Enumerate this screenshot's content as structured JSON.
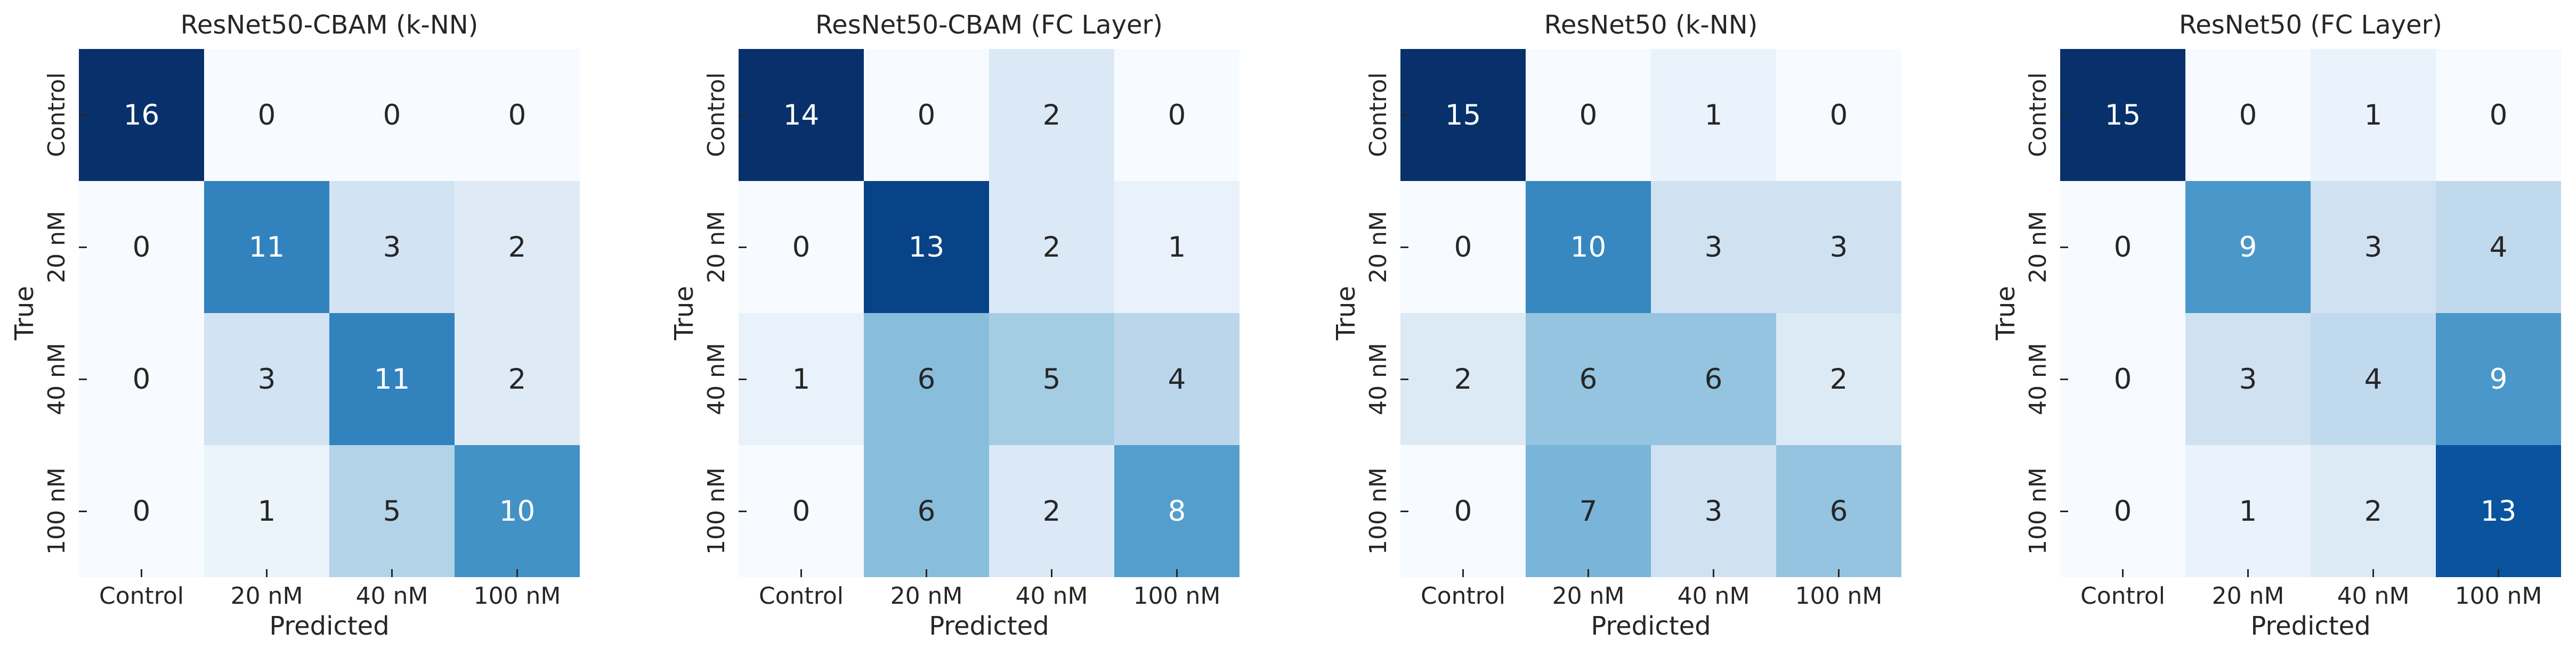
{
  "chart_data": {
    "type": "heatmap",
    "subtype": "confusion-matrix",
    "colormap": "Blues",
    "grid": false,
    "legend": "none",
    "xlabel": "Predicted",
    "ylabel": "True",
    "x_categories": [
      "Control",
      "20 nM",
      "40 nM",
      "100 nM"
    ],
    "y_categories": [
      "Control",
      "20 nM",
      "40 nM",
      "100 nM"
    ],
    "panels": [
      {
        "title": "ResNet50-CBAM (k-NN)",
        "vmin": 0,
        "vmax": 16,
        "matrix": [
          [
            16,
            0,
            0,
            0
          ],
          [
            0,
            11,
            3,
            2
          ],
          [
            0,
            3,
            11,
            2
          ],
          [
            0,
            1,
            5,
            10
          ]
        ]
      },
      {
        "title": "ResNet50-CBAM (FC Layer)",
        "vmin": 0,
        "vmax": 14,
        "matrix": [
          [
            14,
            0,
            2,
            0
          ],
          [
            0,
            13,
            2,
            1
          ],
          [
            1,
            6,
            5,
            4
          ],
          [
            0,
            6,
            2,
            8
          ]
        ]
      },
      {
        "title": "ResNet50 (k-NN)",
        "vmin": 0,
        "vmax": 15,
        "matrix": [
          [
            15,
            0,
            1,
            0
          ],
          [
            0,
            10,
            3,
            3
          ],
          [
            2,
            6,
            6,
            2
          ],
          [
            0,
            7,
            3,
            6
          ]
        ]
      },
      {
        "title": "ResNet50 (FC Layer)",
        "vmin": 0,
        "vmax": 15,
        "matrix": [
          [
            15,
            0,
            1,
            0
          ],
          [
            0,
            9,
            3,
            4
          ],
          [
            0,
            3,
            4,
            9
          ],
          [
            0,
            1,
            2,
            13
          ]
        ]
      }
    ],
    "colors": {
      "background": "#ffffff",
      "text": "#262626",
      "annotation_light": "#ffffff",
      "annotation_dark": "#262626",
      "tick_mark": "#262626",
      "colormap_stops": [
        [
          0.0,
          247,
          251,
          255
        ],
        [
          0.125,
          222,
          235,
          247
        ],
        [
          0.25,
          198,
          219,
          239
        ],
        [
          0.375,
          158,
          202,
          225
        ],
        [
          0.5,
          107,
          174,
          214
        ],
        [
          0.625,
          66,
          146,
          198
        ],
        [
          0.75,
          33,
          113,
          181
        ],
        [
          0.875,
          8,
          81,
          156
        ],
        [
          1.0,
          8,
          48,
          107
        ]
      ],
      "luminance_white_text_threshold": 0.408
    }
  }
}
